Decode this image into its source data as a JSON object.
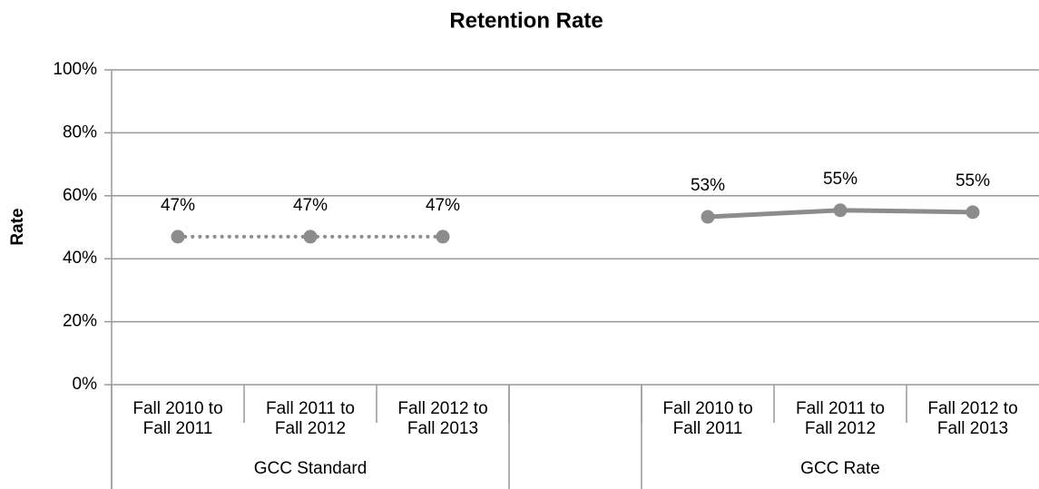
{
  "chart_data": {
    "type": "line",
    "title": "Retention Rate",
    "y_label": "Rate",
    "categories": [
      "Fall 2010 to Fall 2011",
      "Fall 2011 to Fall 2012",
      "Fall 2012 to Fall 2013",
      null,
      "Fall 2010 to Fall 2011",
      "Fall 2011 to Fall 2012",
      "Fall 2012 to Fall 2013"
    ],
    "series": [
      {
        "name": "GCC Standard",
        "color": "#8c8c8c",
        "style": "dotted",
        "values": [
          47,
          47,
          47,
          null,
          null,
          null,
          null
        ],
        "value_labels": [
          "47%",
          "47%",
          "47%",
          null,
          null,
          null,
          null
        ]
      },
      {
        "name": "GCC Rate",
        "color": "#8c8c8c",
        "style": "solid",
        "values": [
          null,
          null,
          null,
          null,
          53.3,
          55.4,
          54.8
        ],
        "value_labels": [
          null,
          null,
          null,
          null,
          "53%",
          "55%",
          "55%"
        ]
      }
    ],
    "ylim": [
      0,
      100
    ],
    "yticks": [
      {
        "value": 0,
        "label": "0%"
      },
      {
        "value": 20,
        "label": "20%"
      },
      {
        "value": 40,
        "label": "40%"
      },
      {
        "value": 60,
        "label": "60%"
      },
      {
        "value": 80,
        "label": "80%"
      },
      {
        "value": 100,
        "label": "100%"
      }
    ],
    "grid": true
  }
}
